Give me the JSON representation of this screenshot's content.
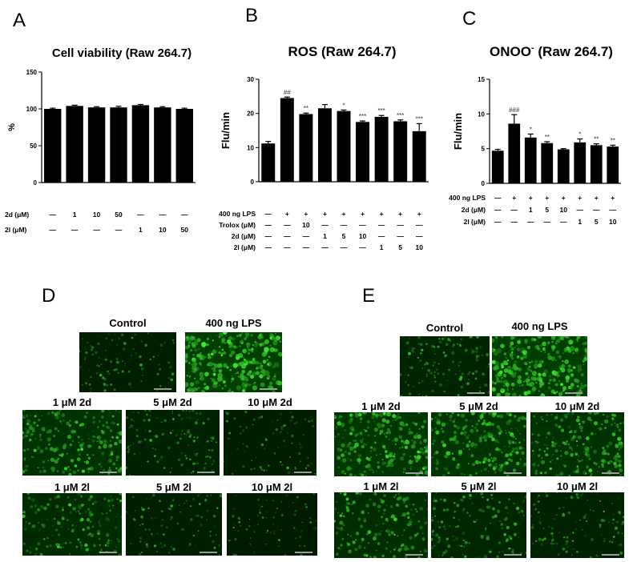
{
  "panels": {
    "A": {
      "letter": "A",
      "chart_data": {
        "type": "bar",
        "title": "Cell viability (Raw 264.7)",
        "ylabel": "%",
        "ylim": [
          0,
          150
        ],
        "yticks": [
          "0",
          "50",
          "100",
          "150"
        ],
        "values": [
          100,
          104,
          102,
          102,
          105,
          102,
          100
        ],
        "errors": [
          1,
          1,
          1,
          1.5,
          1,
          1,
          1
        ],
        "condition_rows": [
          {
            "label": "2d (μM)",
            "values": [
              "—",
              "1",
              "10",
              "50",
              "—",
              "—",
              "—"
            ]
          },
          {
            "label": "2l (μM)",
            "values": [
              "—",
              "—",
              "—",
              "—",
              "1",
              "10",
              "50"
            ]
          }
        ]
      }
    },
    "B": {
      "letter": "B",
      "chart_data": {
        "type": "bar",
        "title": "ROS (Raw 264.7)",
        "ylabel": "Flu/min",
        "ylim": [
          0,
          30
        ],
        "yticks": [
          "0",
          "10",
          "20",
          "30"
        ],
        "values": [
          11.2,
          24.5,
          19.8,
          21.5,
          20.7,
          17.5,
          19.0,
          17.7,
          14.8
        ],
        "errors": [
          0.6,
          0.3,
          0.3,
          1.1,
          0.3,
          0.3,
          0.4,
          0.4,
          2.2
        ],
        "significance": [
          "",
          "##",
          "**",
          "",
          "*",
          "***",
          "***",
          "***",
          "***"
        ],
        "condition_rows": [
          {
            "label": "400 ng LPS",
            "values": [
              "—",
              "+",
              "+",
              "+",
              "+",
              "+",
              "+",
              "+",
              "+"
            ]
          },
          {
            "label": "Trolox (μM)",
            "values": [
              "—",
              "—",
              "10",
              "—",
              "—",
              "—",
              "—",
              "—",
              "—"
            ]
          },
          {
            "label": "2d (μM)",
            "values": [
              "—",
              "—",
              "—",
              "1",
              "5",
              "10",
              "—",
              "—",
              "—"
            ]
          },
          {
            "label": "2l (μM)",
            "values": [
              "—",
              "—",
              "—",
              "—",
              "—",
              "—",
              "1",
              "5",
              "10"
            ]
          }
        ]
      }
    },
    "C": {
      "letter": "C",
      "chart_data": {
        "type": "bar",
        "title_main": "ONOO",
        "title_sup": "-",
        "title_rest": " (Raw 264.7)",
        "ylabel": "Flu/min",
        "ylim": [
          0,
          15
        ],
        "yticks": [
          "0",
          "5",
          "10",
          "15"
        ],
        "values": [
          4.7,
          8.6,
          6.6,
          5.8,
          4.9,
          5.9,
          5.5,
          5.3
        ],
        "errors": [
          0.2,
          1.3,
          0.5,
          0.2,
          0.1,
          0.5,
          0.2,
          0.2
        ],
        "significance": [
          "",
          "###",
          "*",
          "**",
          "",
          "*",
          "**",
          "**"
        ],
        "condition_rows": [
          {
            "label": "400 ng LPS",
            "values": [
              "—",
              "+",
              "+",
              "+",
              "+",
              "+",
              "+",
              "+"
            ]
          },
          {
            "label": "2d (μM)",
            "values": [
              "—",
              "—",
              "1",
              "5",
              "10",
              "—",
              "—",
              "—"
            ]
          },
          {
            "label": "2l (μM)",
            "values": [
              "—",
              "—",
              "—",
              "—",
              "—",
              "1",
              "5",
              "10"
            ]
          }
        ]
      }
    },
    "D": {
      "letter": "D",
      "images": [
        {
          "label": "Control",
          "intensity": 0.25
        },
        {
          "label": "400 ng LPS",
          "intensity": 0.95
        },
        {
          "label": "1 μM 2d",
          "intensity": 0.65
        },
        {
          "label": "5 μM 2d",
          "intensity": 0.3
        },
        {
          "label": "10 μM 2d",
          "intensity": 0.2
        },
        {
          "label": "1 μM 2l",
          "intensity": 0.5
        },
        {
          "label": "5 μM 2l",
          "intensity": 0.22
        },
        {
          "label": "10 μM 2l",
          "intensity": 0.15
        }
      ]
    },
    "E": {
      "letter": "E",
      "images": [
        {
          "label": "Control",
          "intensity": 0.35
        },
        {
          "label": "400 ng LPS",
          "intensity": 0.9
        },
        {
          "label": "1 μM 2d",
          "intensity": 0.75
        },
        {
          "label": "5 μM 2d",
          "intensity": 0.7
        },
        {
          "label": "10 μM 2d",
          "intensity": 0.65
        },
        {
          "label": "1 μM 2l",
          "intensity": 0.55
        },
        {
          "label": "5 μM 2l",
          "intensity": 0.4
        },
        {
          "label": "10 μM 2l",
          "intensity": 0.3
        }
      ]
    }
  },
  "colors": {
    "bar": "#000000",
    "fluor": "#3ccc3c",
    "background": "#ffffff"
  }
}
